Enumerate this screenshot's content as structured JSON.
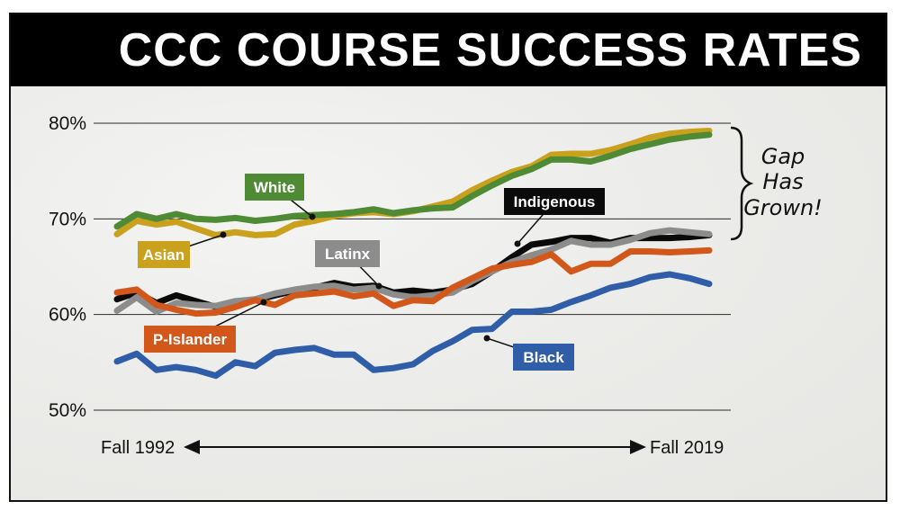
{
  "title": "CCC COURSE SUCCESS RATES",
  "annotation": [
    "Gap",
    "Has",
    "Grown!"
  ],
  "chart_data": {
    "type": "line",
    "title": "CCC COURSE SUCCESS RATES",
    "x_start_label": "Fall 1992",
    "x_end_label": "Fall 2019",
    "y_ticks": [
      "80%",
      "70%",
      "60%",
      "50%"
    ],
    "ylim": [
      50,
      80
    ],
    "grid": true,
    "series": [
      {
        "name": "White",
        "color": "#4f8a34",
        "values": [
          69.2,
          70.5,
          70.0,
          70.5,
          70.0,
          69.9,
          70.1,
          69.8,
          70.0,
          70.3,
          70.4,
          70.5,
          70.7,
          71.0,
          70.6,
          70.9,
          71.1,
          71.2,
          72.4,
          73.5,
          74.5,
          75.2,
          76.2,
          76.2,
          76.0,
          76.6,
          77.3,
          77.8,
          78.3,
          78.6,
          78.8
        ]
      },
      {
        "name": "Asian",
        "color": "#c9a11c",
        "values": [
          68.4,
          69.8,
          69.4,
          69.7,
          69.0,
          68.3,
          68.6,
          68.3,
          68.4,
          69.4,
          69.8,
          70.3,
          70.6,
          70.7,
          70.5,
          70.8,
          71.3,
          71.8,
          73.0,
          74.0,
          74.9,
          75.5,
          76.7,
          76.8,
          76.8,
          77.2,
          77.8,
          78.5,
          78.9,
          79.1,
          79.2
        ]
      },
      {
        "name": "Indigenous",
        "color": "#0a0a0a",
        "values": [
          61.6,
          62.3,
          61.2,
          62.0,
          61.4,
          60.8,
          61.2,
          61.5,
          62.0,
          62.5,
          62.8,
          63.3,
          62.9,
          63.0,
          62.3,
          62.5,
          62.3,
          62.6,
          63.2,
          64.5,
          66.0,
          67.3,
          67.6,
          68.0,
          68.0,
          67.5,
          68.0,
          68.0,
          68.0,
          68.1,
          68.3
        ]
      },
      {
        "name": "Latinx",
        "color": "#8c8c8c",
        "values": [
          60.4,
          61.8,
          60.3,
          61.2,
          61.0,
          60.9,
          61.4,
          61.6,
          62.2,
          62.6,
          62.9,
          63.0,
          62.6,
          62.8,
          62.1,
          61.8,
          62.0,
          62.3,
          63.5,
          64.5,
          65.5,
          66.2,
          66.8,
          67.7,
          67.3,
          67.3,
          67.8,
          68.5,
          68.8,
          68.6,
          68.4
        ]
      },
      {
        "name": "P-Islander",
        "color": "#d1581a",
        "values": [
          62.3,
          62.6,
          61.0,
          60.5,
          60.1,
          60.2,
          60.8,
          61.5,
          61.0,
          62.0,
          62.2,
          62.4,
          61.9,
          62.2,
          60.9,
          61.5,
          61.4,
          62.8,
          63.8,
          64.8,
          65.2,
          65.5,
          66.3,
          64.5,
          65.3,
          65.3,
          66.6,
          66.6,
          66.5,
          66.6,
          66.7
        ]
      },
      {
        "name": "Black",
        "color": "#2f5da7",
        "values": [
          55.1,
          55.9,
          54.2,
          54.5,
          54.2,
          53.6,
          55.0,
          54.6,
          56.0,
          56.3,
          56.5,
          55.8,
          55.8,
          54.2,
          54.4,
          54.8,
          56.2,
          57.2,
          58.4,
          58.5,
          60.3,
          60.3,
          60.5,
          61.3,
          62.0,
          62.8,
          63.2,
          63.9,
          64.2,
          63.8,
          63.2
        ]
      }
    ]
  }
}
